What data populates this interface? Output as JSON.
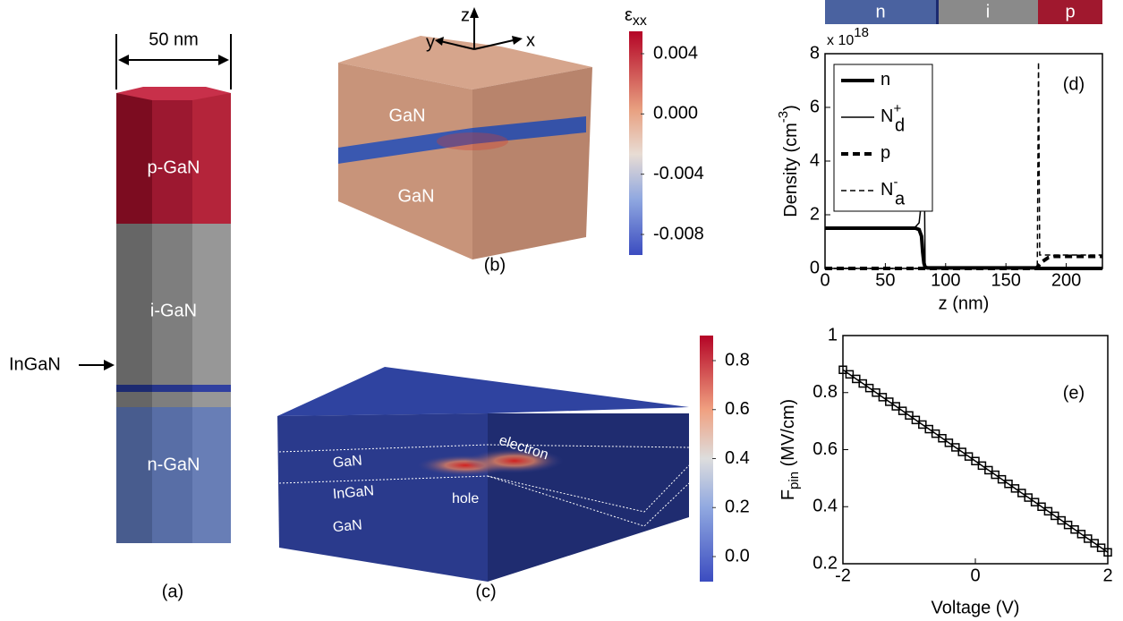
{
  "figure": {
    "panel_a": {
      "width_label": "50 nm",
      "layers": [
        "p-GaN",
        "i-GaN",
        "n-GaN"
      ],
      "inset_label": "InGaN",
      "tag": "(a)"
    },
    "panel_b": {
      "axes": [
        "z",
        "y",
        "x"
      ],
      "regions": [
        "GaN",
        "GaN"
      ],
      "tag": "(b)",
      "colorbar": {
        "label": "ε",
        "label_sub": "xx",
        "ticks": [
          "0.004",
          "0.000",
          "-0.004",
          "-0.008"
        ]
      }
    },
    "panel_c": {
      "regions": [
        "GaN",
        "InGaN",
        "GaN"
      ],
      "carriers": [
        "electron",
        "hole"
      ],
      "tag": "(c)",
      "colorbar": {
        "ticks": [
          "0.8",
          "0.6",
          "0.4",
          "0.2",
          "0.0"
        ]
      }
    },
    "pin_bar": [
      "n",
      "i",
      "p"
    ]
  },
  "chart_data": [
    {
      "type": "line",
      "tag": "(d)",
      "ylabel": "Density (cm",
      "ylabel_sup": "-3",
      "ylabel_end": ")",
      "xlabel": "z (nm)",
      "scale_label": "x 10",
      "scale_sup": "18",
      "x": [
        0,
        20,
        40,
        60,
        70,
        75,
        78,
        80,
        81,
        82,
        83,
        85,
        90,
        100,
        150,
        170,
        175,
        176,
        177,
        178,
        180,
        185,
        190,
        200,
        230
      ],
      "xlim": [
        0,
        230
      ],
      "ylim": [
        0,
        8
      ],
      "xticks": [
        0,
        50,
        100,
        150,
        200
      ],
      "yticks": [
        0,
        2,
        4,
        6,
        8
      ],
      "series": [
        {
          "name": "n",
          "color": "#000000",
          "line_width": 4,
          "dashed": false,
          "values": [
            1.5,
            1.5,
            1.5,
            1.5,
            1.5,
            1.5,
            1.45,
            1.2,
            0.6,
            0.2,
            0.05,
            0.02,
            0.02,
            0.02,
            0.02,
            0.02,
            0.02,
            0,
            0,
            0,
            0,
            0,
            0,
            0,
            0
          ]
        },
        {
          "name": "N",
          "name_sub": "d",
          "name_sup": "+",
          "color": "#000000",
          "line_width": 1.5,
          "dashed": false,
          "values": [
            1.5,
            1.5,
            1.5,
            1.5,
            1.5,
            1.55,
            1.7,
            2.5,
            4,
            5.5,
            0,
            0,
            0,
            0,
            0,
            0,
            0,
            0,
            0,
            0,
            0,
            0,
            0,
            0,
            0
          ]
        },
        {
          "name": "p",
          "color": "#000000",
          "line_width": 4,
          "dashed": true,
          "values": [
            0,
            0,
            0,
            0,
            0,
            0,
            0,
            0,
            0,
            0,
            0,
            0,
            0,
            0,
            0,
            0,
            0,
            0.05,
            0.1,
            0.15,
            0.25,
            0.4,
            0.45,
            0.45,
            0.45
          ]
        },
        {
          "name": "N",
          "name_sub": "a",
          "name_sup": "-",
          "color": "#000000",
          "line_width": 1.5,
          "dashed": true,
          "values": [
            0,
            0,
            0,
            0,
            0,
            0,
            0,
            0,
            0,
            0,
            0,
            0,
            0,
            0,
            0,
            0,
            0,
            0,
            7.7,
            0.5,
            0.5,
            0.5,
            0.5,
            0.5,
            0.5
          ]
        }
      ]
    },
    {
      "type": "line",
      "tag": "(e)",
      "ylabel": "F",
      "ylabel_sub": "pin",
      "ylabel_end": " (MV/cm)",
      "xlabel": "Voltage (V)",
      "x": [
        -2,
        -1.9,
        -1.8,
        -1.7,
        -1.6,
        -1.5,
        -1.4,
        -1.3,
        -1.2,
        -1.1,
        -1,
        -0.9,
        -0.8,
        -0.7,
        -0.6,
        -0.5,
        -0.4,
        -0.3,
        -0.2,
        -0.1,
        0,
        0.1,
        0.2,
        0.3,
        0.4,
        0.5,
        0.6,
        0.7,
        0.8,
        0.9,
        1,
        1.1,
        1.2,
        1.3,
        1.4,
        1.5,
        1.6,
        1.7,
        1.8,
        1.9,
        2
      ],
      "xlim": [
        -2,
        2
      ],
      "ylim": [
        0.2,
        1
      ],
      "xticks": [
        -2,
        0,
        2
      ],
      "yticks": [
        0.2,
        0.4,
        0.6,
        0.8,
        1
      ],
      "series": [
        {
          "color": "#000000",
          "line_width": 1.5,
          "dashed": false,
          "marker": "square",
          "values": [
            0.88,
            0.864,
            0.848,
            0.832,
            0.816,
            0.8,
            0.784,
            0.768,
            0.752,
            0.736,
            0.72,
            0.704,
            0.688,
            0.672,
            0.656,
            0.64,
            0.624,
            0.608,
            0.592,
            0.576,
            0.56,
            0.544,
            0.528,
            0.512,
            0.496,
            0.48,
            0.464,
            0.448,
            0.432,
            0.416,
            0.4,
            0.384,
            0.368,
            0.352,
            0.336,
            0.32,
            0.304,
            0.288,
            0.272,
            0.256,
            0.24
          ]
        }
      ]
    }
  ]
}
